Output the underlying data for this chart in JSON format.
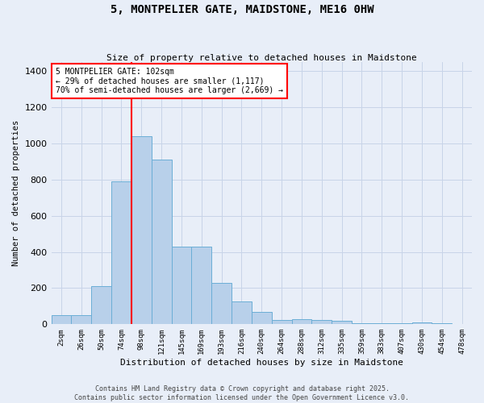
{
  "title": "5, MONTPELIER GATE, MAIDSTONE, ME16 0HW",
  "subtitle": "Size of property relative to detached houses in Maidstone",
  "xlabel": "Distribution of detached houses by size in Maidstone",
  "ylabel": "Number of detached properties",
  "footer_line1": "Contains HM Land Registry data © Crown copyright and database right 2025.",
  "footer_line2": "Contains public sector information licensed under the Open Government Licence v3.0.",
  "categories": [
    "2sqm",
    "26sqm",
    "50sqm",
    "74sqm",
    "98sqm",
    "121sqm",
    "145sqm",
    "169sqm",
    "193sqm",
    "216sqm",
    "240sqm",
    "264sqm",
    "288sqm",
    "312sqm",
    "335sqm",
    "359sqm",
    "383sqm",
    "407sqm",
    "430sqm",
    "454sqm",
    "478sqm"
  ],
  "values": [
    50,
    50,
    210,
    790,
    1040,
    910,
    430,
    430,
    230,
    125,
    70,
    25,
    30,
    25,
    20,
    5,
    5,
    5,
    10,
    5,
    0
  ],
  "bar_color": "#b8d0ea",
  "bar_edge_color": "#6baed6",
  "grid_color": "#c8d4e8",
  "bg_color": "#e8eef8",
  "vline_x": 3.5,
  "vline_color": "red",
  "vline_label": "5 MONTPELIER GATE: 102sqm",
  "annotation_line2": "← 29% of detached houses are smaller (1,117)",
  "annotation_line3": "70% of semi-detached houses are larger (2,669) →",
  "annotation_box_color": "white",
  "annotation_box_edge": "red",
  "ylim": [
    0,
    1450
  ],
  "yticks": [
    0,
    200,
    400,
    600,
    800,
    1000,
    1200,
    1400
  ]
}
